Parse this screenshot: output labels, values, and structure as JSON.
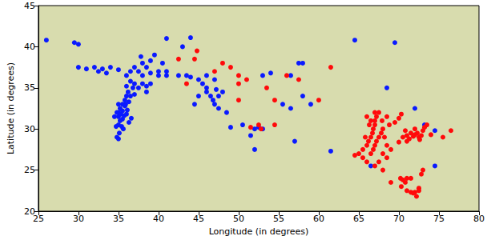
{
  "chart_data": {
    "type": "scatter",
    "xlabel": "Longitude (in degrees)",
    "ylabel": "Latitude (in degrees)",
    "xlim": [
      25,
      80
    ],
    "ylim": [
      20,
      45
    ],
    "xticks": [
      25,
      30,
      35,
      40,
      45,
      50,
      55,
      60,
      65,
      70,
      75,
      80
    ],
    "yticks": [
      20,
      25,
      30,
      35,
      40,
      45
    ],
    "grid": false,
    "series": [
      {
        "color": "#0a1aff",
        "marker": "circle",
        "values": [
          [
            26,
            40.8
          ],
          [
            29.5,
            40.5
          ],
          [
            30,
            40.3
          ],
          [
            30,
            37.5
          ],
          [
            31,
            37.3
          ],
          [
            32,
            37.5
          ],
          [
            32.5,
            37
          ],
          [
            33,
            37.3
          ],
          [
            33.5,
            36.8
          ],
          [
            34,
            37.5
          ],
          [
            35,
            37.2
          ],
          [
            36,
            36.5
          ],
          [
            36.5,
            37
          ],
          [
            37,
            37.5
          ],
          [
            37.5,
            37
          ],
          [
            38,
            38
          ],
          [
            38.5,
            37.5
          ],
          [
            39,
            38.3
          ],
          [
            38,
            36.5
          ],
          [
            39,
            36.8
          ],
          [
            40,
            37
          ],
          [
            40,
            36.5
          ],
          [
            41,
            37
          ],
          [
            40.5,
            38
          ],
          [
            37.8,
            38.8
          ],
          [
            39.5,
            39
          ],
          [
            41,
            41
          ],
          [
            44,
            41.1
          ],
          [
            43,
            40
          ],
          [
            42.5,
            36.5
          ],
          [
            43.5,
            36.5
          ],
          [
            44,
            36.3
          ],
          [
            45,
            36
          ],
          [
            45.5,
            35.5
          ],
          [
            46,
            36.5
          ],
          [
            47,
            36
          ],
          [
            41,
            36.5
          ],
          [
            35,
            32
          ],
          [
            35.2,
            32.5
          ],
          [
            35.5,
            33
          ],
          [
            35.8,
            33.5
          ],
          [
            36,
            34
          ],
          [
            36.2,
            34.5
          ],
          [
            35,
            31.5
          ],
          [
            35.3,
            31.8
          ],
          [
            35.5,
            31.2
          ],
          [
            35.7,
            31.6
          ],
          [
            35.2,
            31
          ],
          [
            35,
            30.5
          ],
          [
            35.4,
            30.3
          ],
          [
            35.6,
            30
          ],
          [
            35.1,
            29.5
          ],
          [
            34.8,
            29
          ],
          [
            35,
            28.8
          ],
          [
            34.5,
            31.5
          ],
          [
            34.8,
            32
          ],
          [
            35.5,
            32.2
          ],
          [
            35.8,
            32.8
          ],
          [
            36.1,
            32.3
          ],
          [
            36,
            31.8
          ],
          [
            35.9,
            33
          ],
          [
            36.3,
            33.3
          ],
          [
            36.5,
            34
          ],
          [
            36.8,
            35
          ],
          [
            37,
            35.5
          ],
          [
            36.5,
            35.8
          ],
          [
            36,
            35.2
          ],
          [
            37.5,
            35
          ],
          [
            38,
            35.5
          ],
          [
            38.5,
            35.2
          ],
          [
            39,
            35.5
          ],
          [
            38.5,
            34.5
          ],
          [
            37,
            34.2
          ],
          [
            36.6,
            31.3
          ],
          [
            36.3,
            30.8
          ],
          [
            35,
            33
          ],
          [
            34.7,
            30.3
          ],
          [
            46.5,
            34
          ],
          [
            46.8,
            33.5
          ],
          [
            47,
            33
          ],
          [
            47.5,
            34
          ],
          [
            48,
            34.5
          ],
          [
            47.2,
            34.8
          ],
          [
            46,
            34.5
          ],
          [
            45,
            34
          ],
          [
            44.5,
            33
          ],
          [
            47.5,
            32.5
          ],
          [
            48.5,
            32
          ],
          [
            46,
            35
          ],
          [
            49,
            30.2
          ],
          [
            52,
            30
          ],
          [
            52.5,
            30.2
          ],
          [
            53,
            30
          ],
          [
            51.5,
            29.2
          ],
          [
            50.5,
            30.5
          ],
          [
            52,
            27.5
          ],
          [
            53,
            36.5
          ],
          [
            54,
            36.8
          ],
          [
            57.5,
            38
          ],
          [
            58,
            38
          ],
          [
            56.5,
            36.5
          ],
          [
            55.5,
            33
          ],
          [
            56.5,
            32.5
          ],
          [
            58,
            34
          ],
          [
            59,
            33
          ],
          [
            57,
            28.5
          ],
          [
            61.5,
            27.3
          ],
          [
            64.5,
            40.8
          ],
          [
            69.5,
            40.5
          ],
          [
            68.5,
            35
          ],
          [
            72,
            32.5
          ],
          [
            74.5,
            29.8
          ],
          [
            74.5,
            25.5
          ],
          [
            73.2,
            30.5
          ],
          [
            66.5,
            25.5
          ]
        ]
      },
      {
        "color": "#ff0a0a",
        "marker": "circle",
        "values": [
          [
            42.5,
            38.5
          ],
          [
            44.5,
            38.5
          ],
          [
            44.8,
            39.5
          ],
          [
            43.5,
            35.5
          ],
          [
            47,
            37
          ],
          [
            48,
            38
          ],
          [
            50,
            36.5
          ],
          [
            49,
            37.5
          ],
          [
            51,
            36
          ],
          [
            50,
            35.5
          ],
          [
            53.5,
            35
          ],
          [
            56,
            36.5
          ],
          [
            57.5,
            36
          ],
          [
            50,
            33.5
          ],
          [
            51.5,
            30.2
          ],
          [
            52.5,
            30.5
          ],
          [
            52.8,
            30
          ],
          [
            54.5,
            33.5
          ],
          [
            60,
            33.5
          ],
          [
            61.5,
            37.5
          ],
          [
            54.5,
            30.5
          ],
          [
            65,
            27
          ],
          [
            65.5,
            27.5
          ],
          [
            66,
            28
          ],
          [
            66.2,
            28.5
          ],
          [
            66.5,
            29
          ],
          [
            66.7,
            29.5
          ],
          [
            66.8,
            30
          ],
          [
            67,
            30.5
          ],
          [
            67,
            31
          ],
          [
            67.2,
            31.5
          ],
          [
            67.5,
            32
          ],
          [
            66.5,
            27
          ],
          [
            66.8,
            27.5
          ],
          [
            67,
            28
          ],
          [
            67.2,
            28.5
          ],
          [
            67.5,
            29
          ],
          [
            67.8,
            29.5
          ],
          [
            68,
            30
          ],
          [
            68,
            27
          ],
          [
            68.5,
            26.5
          ],
          [
            67.5,
            26
          ],
          [
            67,
            25.5
          ],
          [
            66,
            26
          ],
          [
            65.5,
            26.5
          ],
          [
            66.3,
            30.5
          ],
          [
            68.5,
            28
          ],
          [
            69,
            27.5
          ],
          [
            68.2,
            29
          ],
          [
            65.8,
            29
          ],
          [
            66.5,
            31
          ],
          [
            67.9,
            31
          ],
          [
            68.5,
            31.5
          ],
          [
            67,
            32
          ],
          [
            66,
            31.5
          ],
          [
            68,
            25
          ],
          [
            64.5,
            26.8
          ],
          [
            70.5,
            29
          ],
          [
            71,
            29.2
          ],
          [
            71.3,
            28.8
          ],
          [
            71.5,
            29.5
          ],
          [
            71.8,
            29.1
          ],
          [
            72,
            29.3
          ],
          [
            72.3,
            29.5
          ],
          [
            72.5,
            29
          ],
          [
            72.8,
            29.2
          ],
          [
            73,
            29.8
          ],
          [
            73.2,
            30.2
          ],
          [
            72,
            30
          ],
          [
            71,
            28.5
          ],
          [
            70,
            28.4
          ],
          [
            70.8,
            29.8
          ],
          [
            73.5,
            30.5
          ],
          [
            72.6,
            28.7
          ],
          [
            74,
            29.3
          ],
          [
            76.5,
            29.8
          ],
          [
            75.5,
            29
          ],
          [
            70.2,
            24
          ],
          [
            70.5,
            23.8
          ],
          [
            71,
            24
          ],
          [
            71.5,
            24
          ],
          [
            70.8,
            23.5
          ],
          [
            71,
            22.5
          ],
          [
            71.5,
            22.3
          ],
          [
            72,
            22.3
          ],
          [
            72.5,
            22.8
          ],
          [
            72.2,
            21.8
          ],
          [
            71.8,
            22.2
          ],
          [
            72.5,
            22.5
          ],
          [
            72.8,
            24.5
          ],
          [
            73,
            25
          ],
          [
            69,
            23.5
          ],
          [
            70.3,
            23
          ],
          [
            69.5,
            30.8
          ],
          [
            70,
            31.3
          ],
          [
            70.3,
            31.8
          ],
          [
            68.8,
            30.5
          ]
        ]
      }
    ]
  }
}
